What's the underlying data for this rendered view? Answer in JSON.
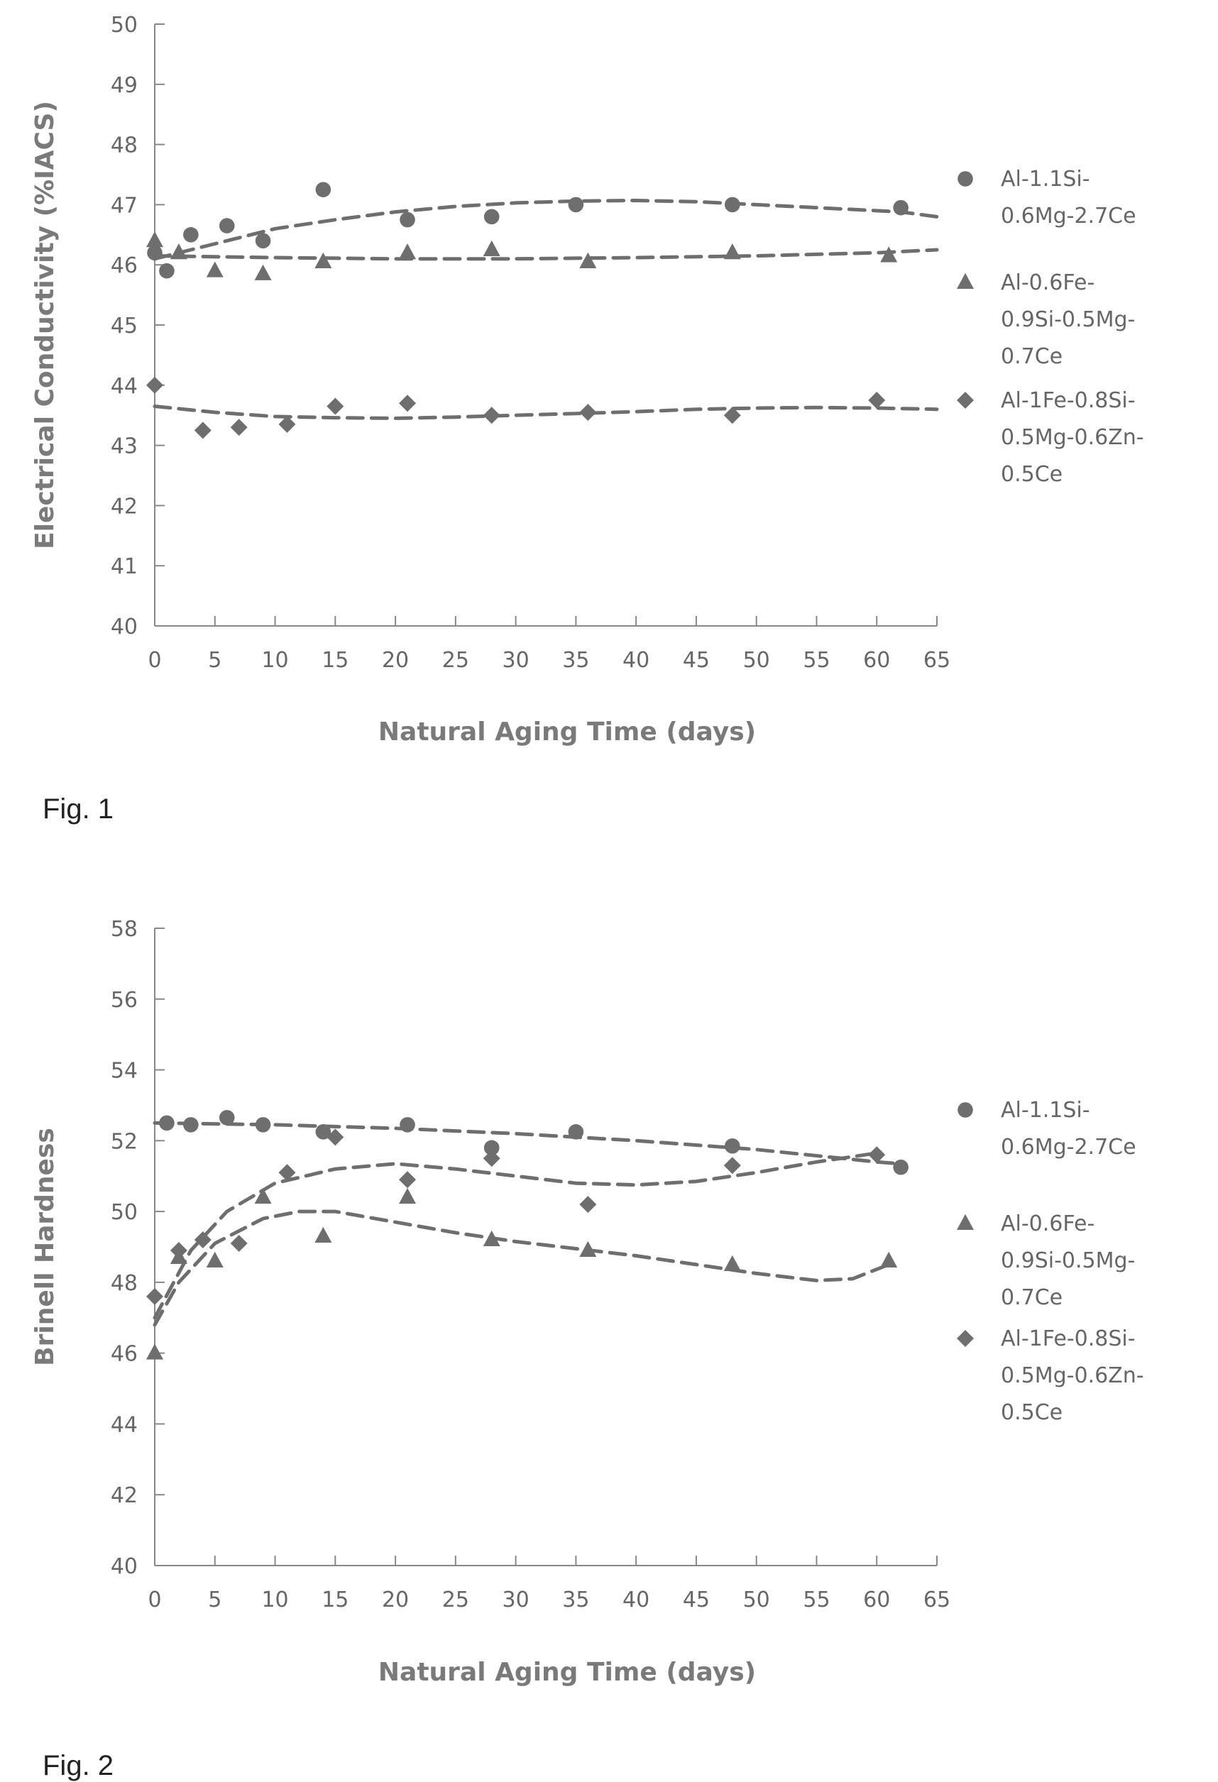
{
  "captions": {
    "fig1": "Fig. 1",
    "fig2": "Fig. 2"
  },
  "colors": {
    "marker": "#6e6e6e",
    "trend": "#6e6e6e",
    "axis": "#888888",
    "text": "#666666"
  },
  "chart_data": [
    {
      "type": "scatter",
      "title": "",
      "xlabel": "Natural Aging Time (days)",
      "ylabel": "Electrical Conductivity (%IACS)",
      "xlim": [
        0,
        65
      ],
      "ylim": [
        40,
        50
      ],
      "xticks": [
        "0",
        "5",
        "10",
        "15",
        "20",
        "25",
        "30",
        "35",
        "40",
        "45",
        "50",
        "55",
        "60",
        "65"
      ],
      "yticks": [
        "40",
        "41",
        "42",
        "43",
        "44",
        "45",
        "46",
        "47",
        "48",
        "49",
        "50"
      ],
      "legend_position": "right",
      "series": [
        {
          "name_lines": [
            "Al-1.1Si-",
            "0.6Mg-2.7Ce"
          ],
          "marker": "circle",
          "x": [
            0,
            1,
            3,
            6,
            9,
            14,
            21,
            28,
            35,
            48,
            62
          ],
          "y": [
            46.2,
            45.9,
            46.5,
            46.65,
            46.4,
            47.25,
            46.75,
            46.8,
            47.0,
            47.0,
            46.95
          ],
          "trend": [
            [
              0,
              46.1
            ],
            [
              5,
              46.35
            ],
            [
              10,
              46.6
            ],
            [
              15,
              46.75
            ],
            [
              20,
              46.88
            ],
            [
              25,
              46.97
            ],
            [
              30,
              47.03
            ],
            [
              35,
              47.06
            ],
            [
              40,
              47.07
            ],
            [
              45,
              47.05
            ],
            [
              50,
              47.0
            ],
            [
              55,
              46.95
            ],
            [
              60,
              46.9
            ],
            [
              62,
              46.88
            ],
            [
              65,
              46.8
            ]
          ]
        },
        {
          "name_lines": [
            "Al-0.6Fe-",
            "0.9Si-0.5Mg-",
            "0.7Ce"
          ],
          "marker": "triangle",
          "x": [
            0,
            2,
            5,
            9,
            14,
            21,
            28,
            36,
            48,
            61
          ],
          "y": [
            46.4,
            46.2,
            45.9,
            45.85,
            46.05,
            46.2,
            46.25,
            46.05,
            46.2,
            46.15
          ],
          "trend": [
            [
              0,
              46.15
            ],
            [
              10,
              46.12
            ],
            [
              20,
              46.1
            ],
            [
              30,
              46.1
            ],
            [
              40,
              46.12
            ],
            [
              50,
              46.15
            ],
            [
              60,
              46.2
            ],
            [
              65,
              46.25
            ]
          ]
        },
        {
          "name_lines": [
            "Al-1Fe-0.8Si-",
            "0.5Mg-0.6Zn-",
            "0.5Ce"
          ],
          "marker": "diamond",
          "x": [
            0,
            4,
            7,
            11,
            15,
            21,
            28,
            36,
            48,
            60
          ],
          "y": [
            44.0,
            43.25,
            43.3,
            43.35,
            43.65,
            43.7,
            43.5,
            43.55,
            43.5,
            43.75
          ],
          "trend": [
            [
              0,
              43.65
            ],
            [
              5,
              43.55
            ],
            [
              10,
              43.48
            ],
            [
              15,
              43.46
            ],
            [
              20,
              43.45
            ],
            [
              25,
              43.47
            ],
            [
              30,
              43.5
            ],
            [
              35,
              43.53
            ],
            [
              40,
              43.56
            ],
            [
              45,
              43.6
            ],
            [
              50,
              43.62
            ],
            [
              55,
              43.63
            ],
            [
              60,
              43.62
            ],
            [
              65,
              43.6
            ]
          ]
        }
      ]
    },
    {
      "type": "scatter",
      "title": "",
      "xlabel": "Natural Aging Time (days)",
      "ylabel": "Brinell Hardness",
      "xlim": [
        0,
        65
      ],
      "ylim": [
        40,
        58
      ],
      "xticks": [
        "0",
        "5",
        "10",
        "15",
        "20",
        "25",
        "30",
        "35",
        "40",
        "45",
        "50",
        "55",
        "60",
        "65"
      ],
      "yticks": [
        "40",
        "42",
        "44",
        "46",
        "48",
        "50",
        "52",
        "54",
        "56",
        "58"
      ],
      "legend_position": "right",
      "series": [
        {
          "name_lines": [
            "Al-1.1Si-",
            "0.6Mg-2.7Ce"
          ],
          "marker": "circle",
          "x": [
            1,
            3,
            6,
            9,
            14,
            21,
            28,
            35,
            48,
            62
          ],
          "y": [
            52.5,
            52.45,
            52.65,
            52.45,
            52.25,
            52.45,
            51.8,
            52.25,
            51.85,
            51.25
          ],
          "trend": [
            [
              0,
              52.5
            ],
            [
              10,
              52.45
            ],
            [
              20,
              52.35
            ],
            [
              30,
              52.2
            ],
            [
              40,
              52.0
            ],
            [
              50,
              51.75
            ],
            [
              60,
              51.4
            ],
            [
              62,
              51.35
            ]
          ]
        },
        {
          "name_lines": [
            "Al-0.6Fe-",
            "0.9Si-0.5Mg-",
            "0.7Ce"
          ],
          "marker": "triangle",
          "x": [
            0,
            2,
            5,
            9,
            14,
            21,
            28,
            36,
            48,
            61
          ],
          "y": [
            46.0,
            48.7,
            48.6,
            50.4,
            49.3,
            50.4,
            49.2,
            48.9,
            48.5,
            48.6
          ],
          "trend": [
            [
              0,
              46.8
            ],
            [
              2,
              48.0
            ],
            [
              5,
              49.1
            ],
            [
              9,
              49.8
            ],
            [
              12,
              50.0
            ],
            [
              15,
              50.0
            ],
            [
              20,
              49.7
            ],
            [
              25,
              49.4
            ],
            [
              30,
              49.15
            ],
            [
              35,
              48.95
            ],
            [
              40,
              48.75
            ],
            [
              45,
              48.5
            ],
            [
              50,
              48.25
            ],
            [
              55,
              48.05
            ],
            [
              58,
              48.1
            ],
            [
              61,
              48.5
            ]
          ]
        },
        {
          "name_lines": [
            "Al-1Fe-0.8Si-",
            "0.5Mg-0.6Zn-",
            "0.5Ce"
          ],
          "marker": "diamond",
          "x": [
            0,
            2,
            4,
            7,
            11,
            15,
            21,
            28,
            36,
            48,
            60
          ],
          "y": [
            47.6,
            48.9,
            49.2,
            49.1,
            51.1,
            52.1,
            50.9,
            51.5,
            50.2,
            51.3,
            51.6
          ],
          "trend": [
            [
              0,
              47.0
            ],
            [
              3,
              48.9
            ],
            [
              6,
              50.0
            ],
            [
              10,
              50.8
            ],
            [
              15,
              51.2
            ],
            [
              20,
              51.35
            ],
            [
              25,
              51.2
            ],
            [
              30,
              51.0
            ],
            [
              35,
              50.8
            ],
            [
              40,
              50.75
            ],
            [
              45,
              50.85
            ],
            [
              50,
              51.1
            ],
            [
              55,
              51.4
            ],
            [
              60,
              51.65
            ]
          ]
        }
      ]
    }
  ]
}
